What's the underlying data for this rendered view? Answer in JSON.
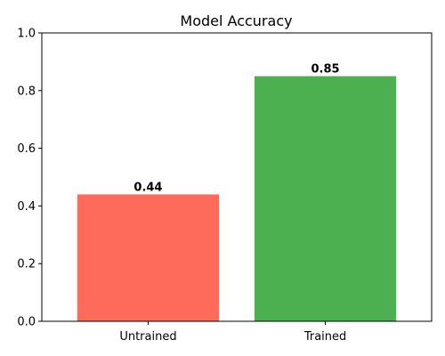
{
  "chart_data": {
    "type": "bar",
    "title": "Model Accuracy",
    "xlabel": "",
    "ylabel": "",
    "categories": [
      "Untrained",
      "Trained"
    ],
    "values": [
      0.44,
      0.85
    ],
    "data_labels": [
      "0.44",
      "0.85"
    ],
    "colors": [
      "#ff6b5b",
      "#4caf50"
    ],
    "ylim": [
      0,
      1.0
    ],
    "yticks": [
      0.0,
      0.2,
      0.4,
      0.6,
      0.8,
      1.0
    ],
    "ytick_labels": [
      "0.0",
      "0.2",
      "0.4",
      "0.6",
      "0.8",
      "1.0"
    ],
    "grid": false,
    "legend": "none"
  }
}
